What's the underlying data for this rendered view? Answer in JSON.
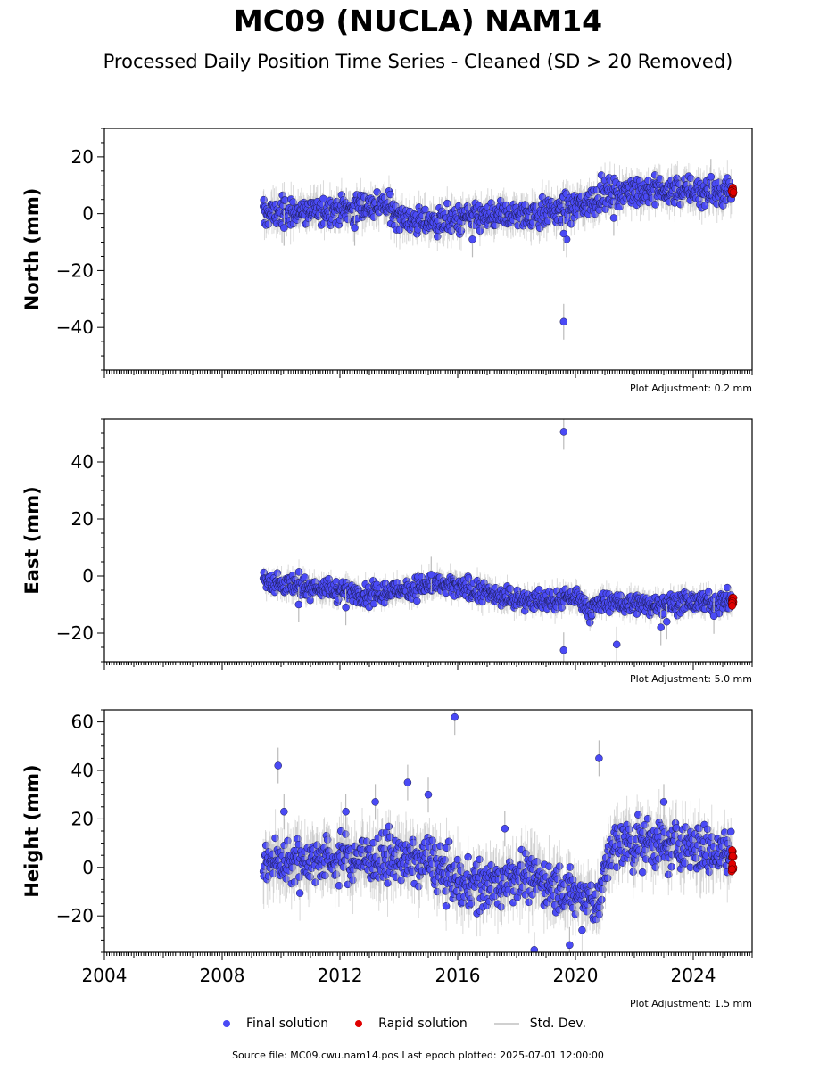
{
  "title": "MC09 (NUCLA) NAM14",
  "subtitle": "Processed Daily Position Time Series - Cleaned (SD > 20 Removed)",
  "legend": {
    "final": "Final solution",
    "rapid": "Rapid solution",
    "std": "Std. Dev."
  },
  "colors": {
    "final": "#4a4af5",
    "rapid": "#e00000",
    "std": "#bbbbbb"
  },
  "source": "Source file: MC09.cwu.nam14.pos  Last epoch plotted: 2025-07-01 12:00:00",
  "chart_data": {
    "type": "scatter",
    "x_range": [
      2004.0,
      2026.0
    ],
    "x_ticks": [
      "2004",
      "2008",
      "2012",
      "2016",
      "2020",
      "2024"
    ],
    "panels": [
      {
        "ylabel": "North (mm)",
        "ylim": [
          -55,
          30
        ],
        "yticks": [
          20,
          0,
          -20,
          -40
        ],
        "adjustment": "Plot Adjustment: 0.2 mm",
        "trend": [
          [
            2009.4,
            0
          ],
          [
            2012.0,
            1.5
          ],
          [
            2013.5,
            3
          ],
          [
            2014.5,
            -3
          ],
          [
            2016.0,
            -2
          ],
          [
            2018.5,
            0
          ],
          [
            2020.0,
            2
          ],
          [
            2021.0,
            7
          ],
          [
            2022.0,
            8
          ],
          [
            2025.3,
            8
          ]
        ],
        "scatter": 3.5,
        "outliers": [
          [
            2019.6,
            -38
          ],
          [
            2019.7,
            -9
          ],
          [
            2019.6,
            -7
          ],
          [
            2021.3,
            -1.5
          ],
          [
            2010.1,
            -5
          ],
          [
            2012.5,
            -5
          ],
          [
            2024.6,
            13
          ],
          [
            2016.5,
            -9
          ]
        ],
        "rapid": [
          2025.3,
          8
        ]
      },
      {
        "ylabel": "East (mm)",
        "ylim": [
          -30,
          55
        ],
        "yticks": [
          40,
          20,
          0,
          -20
        ],
        "adjustment": "Plot Adjustment: 5.0 mm",
        "trend": [
          [
            2009.4,
            -1
          ],
          [
            2010.0,
            -3
          ],
          [
            2012.0,
            -5
          ],
          [
            2013.0,
            -7
          ],
          [
            2015.0,
            -3
          ],
          [
            2016.0,
            -4
          ],
          [
            2018.0,
            -8
          ],
          [
            2019.0,
            -9
          ],
          [
            2020.0,
            -7
          ],
          [
            2020.5,
            -12
          ],
          [
            2021.0,
            -9
          ],
          [
            2022.0,
            -10
          ],
          [
            2025.3,
            -9
          ]
        ],
        "scatter": 2.5,
        "outliers": [
          [
            2019.6,
            50.5
          ],
          [
            2019.6,
            -26
          ],
          [
            2021.4,
            -24
          ],
          [
            2022.9,
            -18
          ],
          [
            2023.1,
            -16
          ],
          [
            2012.2,
            -11
          ],
          [
            2010.6,
            -10
          ],
          [
            2015.1,
            0.5
          ],
          [
            2024.7,
            -14
          ]
        ],
        "rapid": [
          2025.3,
          -9
        ]
      },
      {
        "ylabel": "Height (mm)",
        "ylim": [
          -35,
          65
        ],
        "yticks": [
          60,
          40,
          20,
          0,
          -20
        ],
        "adjustment": "Plot Adjustment: 1.5 mm",
        "trend": [
          [
            2009.4,
            2
          ],
          [
            2012.0,
            4
          ],
          [
            2015.0,
            3
          ],
          [
            2016.0,
            -6
          ],
          [
            2017.0,
            -8
          ],
          [
            2018.0,
            -3
          ],
          [
            2019.0,
            -6
          ],
          [
            2020.0,
            -12
          ],
          [
            2020.8,
            -14
          ],
          [
            2021.2,
            8
          ],
          [
            2022.5,
            10
          ],
          [
            2024.0,
            8
          ],
          [
            2025.3,
            5
          ]
        ],
        "scatter": 7,
        "outliers": [
          [
            2009.9,
            42
          ],
          [
            2015.9,
            62
          ],
          [
            2020.8,
            45
          ],
          [
            2014.3,
            35
          ],
          [
            2015.0,
            30
          ],
          [
            2013.2,
            27
          ],
          [
            2018.6,
            -34
          ],
          [
            2019.8,
            -32
          ],
          [
            2012.2,
            23
          ],
          [
            2010.1,
            23
          ],
          [
            2023.0,
            27
          ],
          [
            2017.6,
            16
          ]
        ],
        "rapid": [
          2025.3,
          3
        ]
      }
    ]
  }
}
